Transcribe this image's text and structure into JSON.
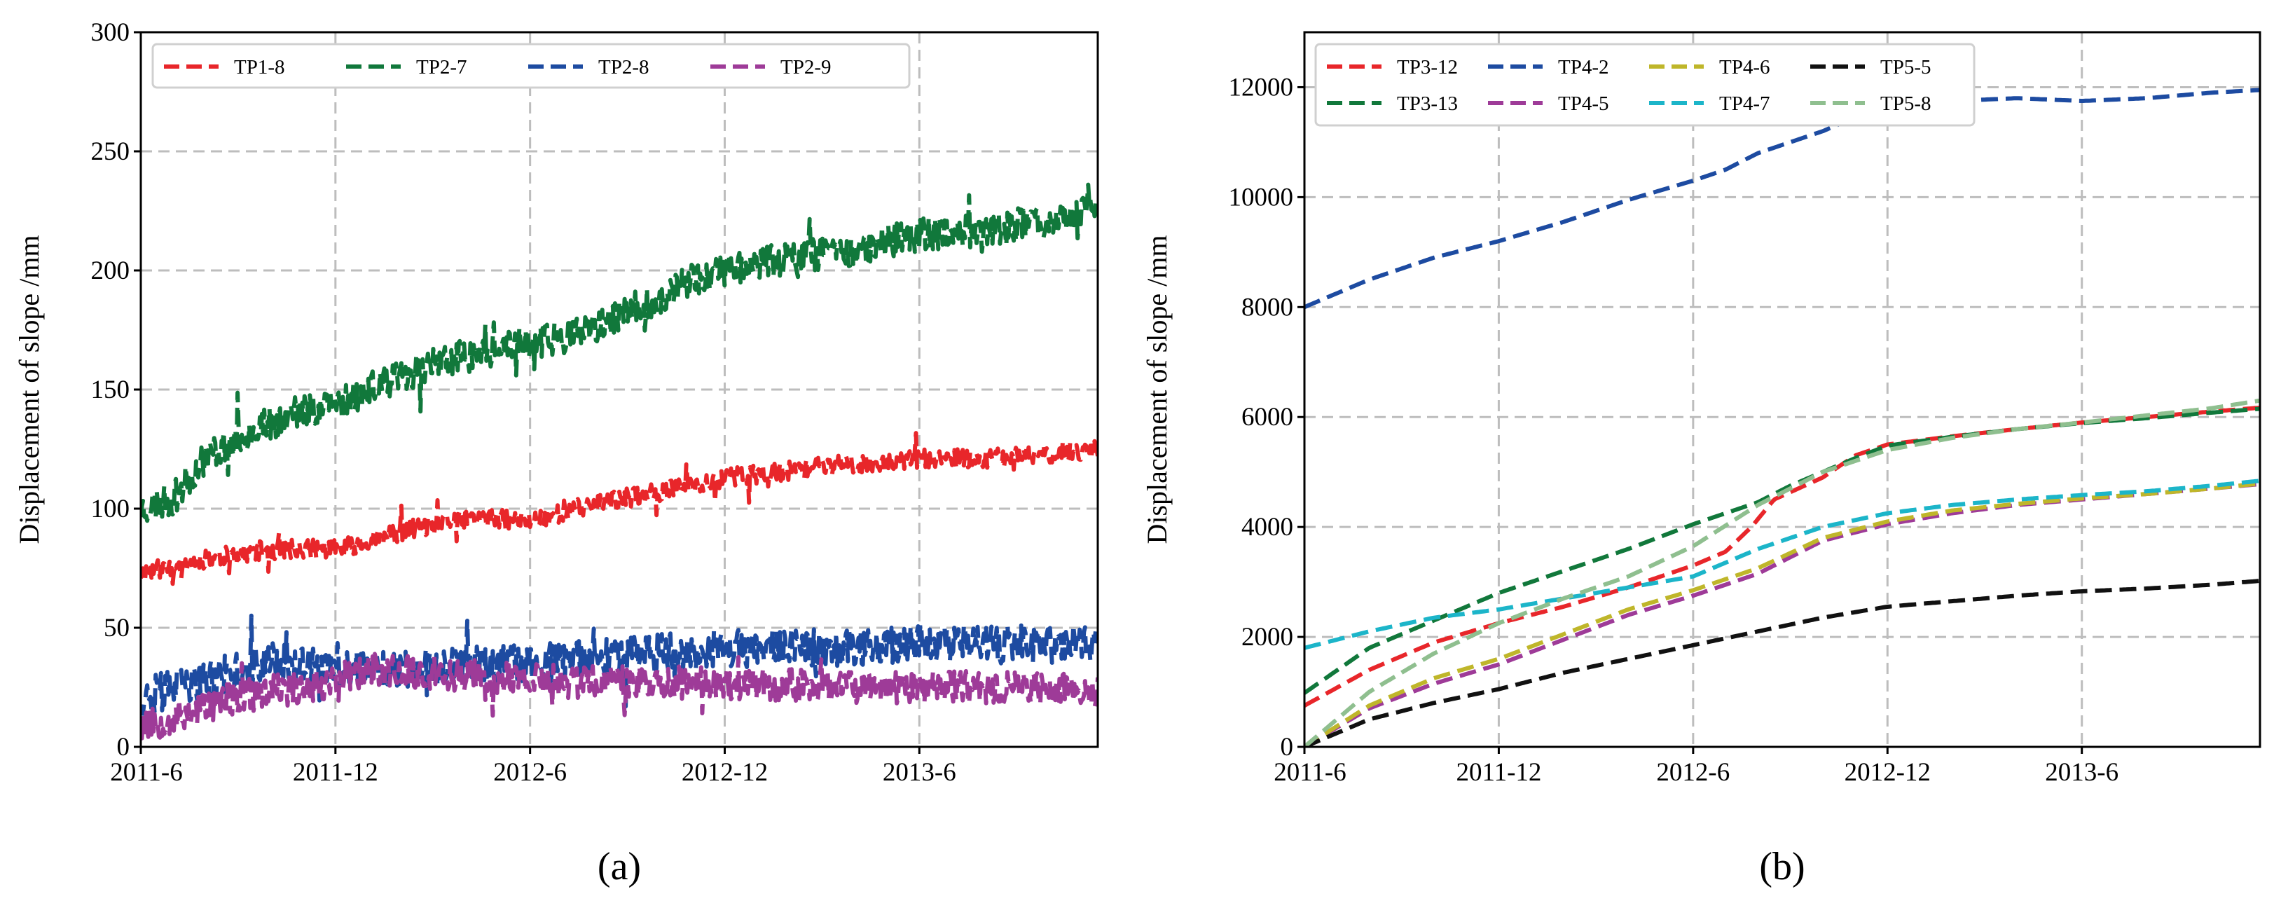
{
  "chart_data": [
    {
      "type": "line",
      "id": "a",
      "panel_label": "(a)",
      "ylabel": "Displacement of slope /mm",
      "xlabel": "",
      "ylim": [
        0,
        300
      ],
      "yticks": [
        0,
        50,
        100,
        150,
        200,
        250,
        300
      ],
      "xlim": [
        0,
        29.5
      ],
      "xticks": [
        {
          "label": "2011-6",
          "value": 0
        },
        {
          "label": "2011-12",
          "value": 6
        },
        {
          "label": "2012-6",
          "value": 12
        },
        {
          "label": "2012-12",
          "value": 18
        },
        {
          "label": "2013-6",
          "value": 24
        }
      ],
      "grid": true,
      "legend": {
        "position": "top",
        "columns": 4
      },
      "series": [
        {
          "name": "TP1-8",
          "color": "#e8262a",
          "noise": 4,
          "seed": 11,
          "points": [
            [
              0,
              73
            ],
            [
              2,
              79
            ],
            [
              4,
              83
            ],
            [
              6,
              83
            ],
            [
              8,
              90
            ],
            [
              10,
              96
            ],
            [
              12,
              95
            ],
            [
              14,
              102
            ],
            [
              16,
              107
            ],
            [
              18,
              113
            ],
            [
              20,
              116
            ],
            [
              22,
              119
            ],
            [
              24,
              121
            ],
            [
              26,
              121
            ],
            [
              28,
              123
            ],
            [
              29.5,
              125
            ]
          ]
        },
        {
          "name": "TP2-7",
          "color": "#11783b",
          "noise": 7,
          "seed": 23,
          "points": [
            [
              0,
              100
            ],
            [
              1,
              104
            ],
            [
              2,
              122
            ],
            [
              3,
              130
            ],
            [
              4,
              136
            ],
            [
              5,
              141
            ],
            [
              6,
              144
            ],
            [
              7,
              150
            ],
            [
              8,
              155
            ],
            [
              9,
              161
            ],
            [
              10,
              164
            ],
            [
              11,
              167
            ],
            [
              12,
              170
            ],
            [
              13,
              172
            ],
            [
              14,
              175
            ],
            [
              15,
              183
            ],
            [
              16,
              188
            ],
            [
              17,
              196
            ],
            [
              18,
              200
            ],
            [
              19,
              203
            ],
            [
              20,
              205
            ],
            [
              21,
              207
            ],
            [
              22,
              209
            ],
            [
              23,
              212
            ],
            [
              24,
              215
            ],
            [
              25,
              216
            ],
            [
              26,
              217
            ],
            [
              27,
              219
            ],
            [
              28,
              221
            ],
            [
              29.5,
              226
            ]
          ]
        },
        {
          "name": "TP2-8",
          "color": "#1d4ba1",
          "noise": 8,
          "seed": 37,
          "points": [
            [
              0,
              21
            ],
            [
              2,
              28
            ],
            [
              4,
              36
            ],
            [
              6,
              32
            ],
            [
              8,
              33
            ],
            [
              10,
              34
            ],
            [
              12,
              35
            ],
            [
              14,
              37
            ],
            [
              16,
              40
            ],
            [
              18,
              41
            ],
            [
              20,
              42
            ],
            [
              22,
              42
            ],
            [
              24,
              44
            ],
            [
              26,
              43
            ],
            [
              28,
              43
            ],
            [
              29.5,
              44
            ]
          ]
        },
        {
          "name": "TP2-9",
          "color": "#9e3b98",
          "noise": 7,
          "seed": 53,
          "points": [
            [
              0,
              9
            ],
            [
              1,
              12
            ],
            [
              2,
              17
            ],
            [
              3,
              21
            ],
            [
              4,
              23
            ],
            [
              5,
              25
            ],
            [
              6,
              28
            ],
            [
              7,
              32
            ],
            [
              8,
              32
            ],
            [
              10,
              30
            ],
            [
              12,
              28
            ],
            [
              14,
              27
            ],
            [
              16,
              27
            ],
            [
              18,
              27
            ],
            [
              20,
              26
            ],
            [
              22,
              25
            ],
            [
              24,
              25
            ],
            [
              26,
              25
            ],
            [
              28,
              24
            ],
            [
              29.5,
              23
            ]
          ]
        }
      ]
    },
    {
      "type": "line",
      "id": "b",
      "panel_label": "(b)",
      "ylabel": "Displacement of slope /mm",
      "xlabel": "",
      "ylim": [
        0,
        13000
      ],
      "yticks": [
        0,
        2000,
        4000,
        6000,
        8000,
        10000,
        12000
      ],
      "xlim": [
        0,
        29.5
      ],
      "xticks": [
        {
          "label": "2011-6",
          "value": 0
        },
        {
          "label": "2011-12",
          "value": 6
        },
        {
          "label": "2012-6",
          "value": 12
        },
        {
          "label": "2012-12",
          "value": 18
        },
        {
          "label": "2013-6",
          "value": 24
        }
      ],
      "grid": true,
      "legend": {
        "position": "top",
        "columns": 4
      },
      "series": [
        {
          "name": "TP3-12",
          "color": "#e8262a",
          "points": [
            [
              0,
              750
            ],
            [
              2,
              1400
            ],
            [
              4,
              1900
            ],
            [
              6,
              2250
            ],
            [
              8,
              2550
            ],
            [
              10,
              2900
            ],
            [
              12,
              3300
            ],
            [
              13,
              3550
            ],
            [
              13.8,
              4000
            ],
            [
              14.5,
              4500
            ],
            [
              16,
              4900
            ],
            [
              17,
              5300
            ],
            [
              18,
              5500
            ],
            [
              20,
              5650
            ],
            [
              22,
              5780
            ],
            [
              24,
              5900
            ],
            [
              26,
              6000
            ],
            [
              28,
              6100
            ],
            [
              29.5,
              6170
            ]
          ]
        },
        {
          "name": "TP3-13",
          "color": "#11783b",
          "points": [
            [
              0,
              980
            ],
            [
              2,
              1800
            ],
            [
              4,
              2300
            ],
            [
              6,
              2800
            ],
            [
              8,
              3200
            ],
            [
              10,
              3600
            ],
            [
              12,
              4050
            ],
            [
              14,
              4450
            ],
            [
              15,
              4750
            ],
            [
              17,
              5250
            ],
            [
              18,
              5480
            ],
            [
              20,
              5640
            ],
            [
              22,
              5780
            ],
            [
              24,
              5890
            ],
            [
              26,
              5980
            ],
            [
              28,
              6080
            ],
            [
              29.5,
              6150
            ]
          ]
        },
        {
          "name": "TP4-2",
          "color": "#1d4ba1",
          "points": [
            [
              0,
              8000
            ],
            [
              2,
              8500
            ],
            [
              4,
              8900
            ],
            [
              6,
              9200
            ],
            [
              8,
              9550
            ],
            [
              10,
              9950
            ],
            [
              12,
              10300
            ],
            [
              13,
              10500
            ],
            [
              14,
              10800
            ],
            [
              16,
              11200
            ],
            [
              17,
              11450
            ],
            [
              18,
              11600
            ],
            [
              20,
              11750
            ],
            [
              22,
              11800
            ],
            [
              24,
              11750
            ],
            [
              26,
              11800
            ],
            [
              28,
              11900
            ],
            [
              29.5,
              11950
            ]
          ]
        },
        {
          "name": "TP4-5",
          "color": "#9e3b98",
          "points": [
            [
              0,
              0
            ],
            [
              2,
              700
            ],
            [
              4,
              1150
            ],
            [
              6,
              1500
            ],
            [
              8,
              1950
            ],
            [
              10,
              2400
            ],
            [
              12,
              2750
            ],
            [
              14,
              3150
            ],
            [
              16,
              3750
            ],
            [
              18,
              4050
            ],
            [
              20,
              4250
            ],
            [
              22,
              4400
            ],
            [
              24,
              4500
            ],
            [
              26,
              4600
            ],
            [
              28,
              4700
            ],
            [
              29.5,
              4780
            ]
          ]
        },
        {
          "name": "TP4-6",
          "color": "#bfb62a",
          "points": [
            [
              0,
              0
            ],
            [
              2,
              750
            ],
            [
              4,
              1250
            ],
            [
              6,
              1600
            ],
            [
              8,
              2050
            ],
            [
              10,
              2500
            ],
            [
              12,
              2850
            ],
            [
              14,
              3250
            ],
            [
              16,
              3800
            ],
            [
              18,
              4100
            ],
            [
              20,
              4300
            ],
            [
              22,
              4420
            ],
            [
              24,
              4520
            ],
            [
              26,
              4600
            ],
            [
              28,
              4700
            ],
            [
              29.5,
              4790
            ]
          ]
        },
        {
          "name": "TP4-7",
          "color": "#1cb5c9",
          "points": [
            [
              0,
              1800
            ],
            [
              2,
              2100
            ],
            [
              4,
              2350
            ],
            [
              6,
              2500
            ],
            [
              8,
              2700
            ],
            [
              10,
              2900
            ],
            [
              12,
              3100
            ],
            [
              14,
              3600
            ],
            [
              16,
              4000
            ],
            [
              18,
              4250
            ],
            [
              20,
              4400
            ],
            [
              22,
              4500
            ],
            [
              24,
              4580
            ],
            [
              26,
              4650
            ],
            [
              28,
              4750
            ],
            [
              29.5,
              4840
            ]
          ]
        },
        {
          "name": "TP5-5",
          "color": "#111111",
          "points": [
            [
              0,
              0
            ],
            [
              2,
              500
            ],
            [
              4,
              800
            ],
            [
              6,
              1050
            ],
            [
              8,
              1350
            ],
            [
              10,
              1600
            ],
            [
              12,
              1850
            ],
            [
              14,
              2100
            ],
            [
              16,
              2350
            ],
            [
              18,
              2550
            ],
            [
              20,
              2650
            ],
            [
              22,
              2750
            ],
            [
              24,
              2830
            ],
            [
              26,
              2880
            ],
            [
              28,
              2950
            ],
            [
              29.5,
              3020
            ]
          ]
        },
        {
          "name": "TP5-8",
          "color": "#8fbf8f",
          "points": [
            [
              0,
              0
            ],
            [
              2,
              1000
            ],
            [
              4,
              1700
            ],
            [
              6,
              2250
            ],
            [
              8,
              2700
            ],
            [
              10,
              3100
            ],
            [
              12,
              3650
            ],
            [
              14,
              4400
            ],
            [
              16,
              5000
            ],
            [
              18,
              5400
            ],
            [
              20,
              5620
            ],
            [
              22,
              5780
            ],
            [
              24,
              5900
            ],
            [
              26,
              6030
            ],
            [
              28,
              6160
            ],
            [
              29.5,
              6300
            ]
          ]
        }
      ]
    }
  ]
}
